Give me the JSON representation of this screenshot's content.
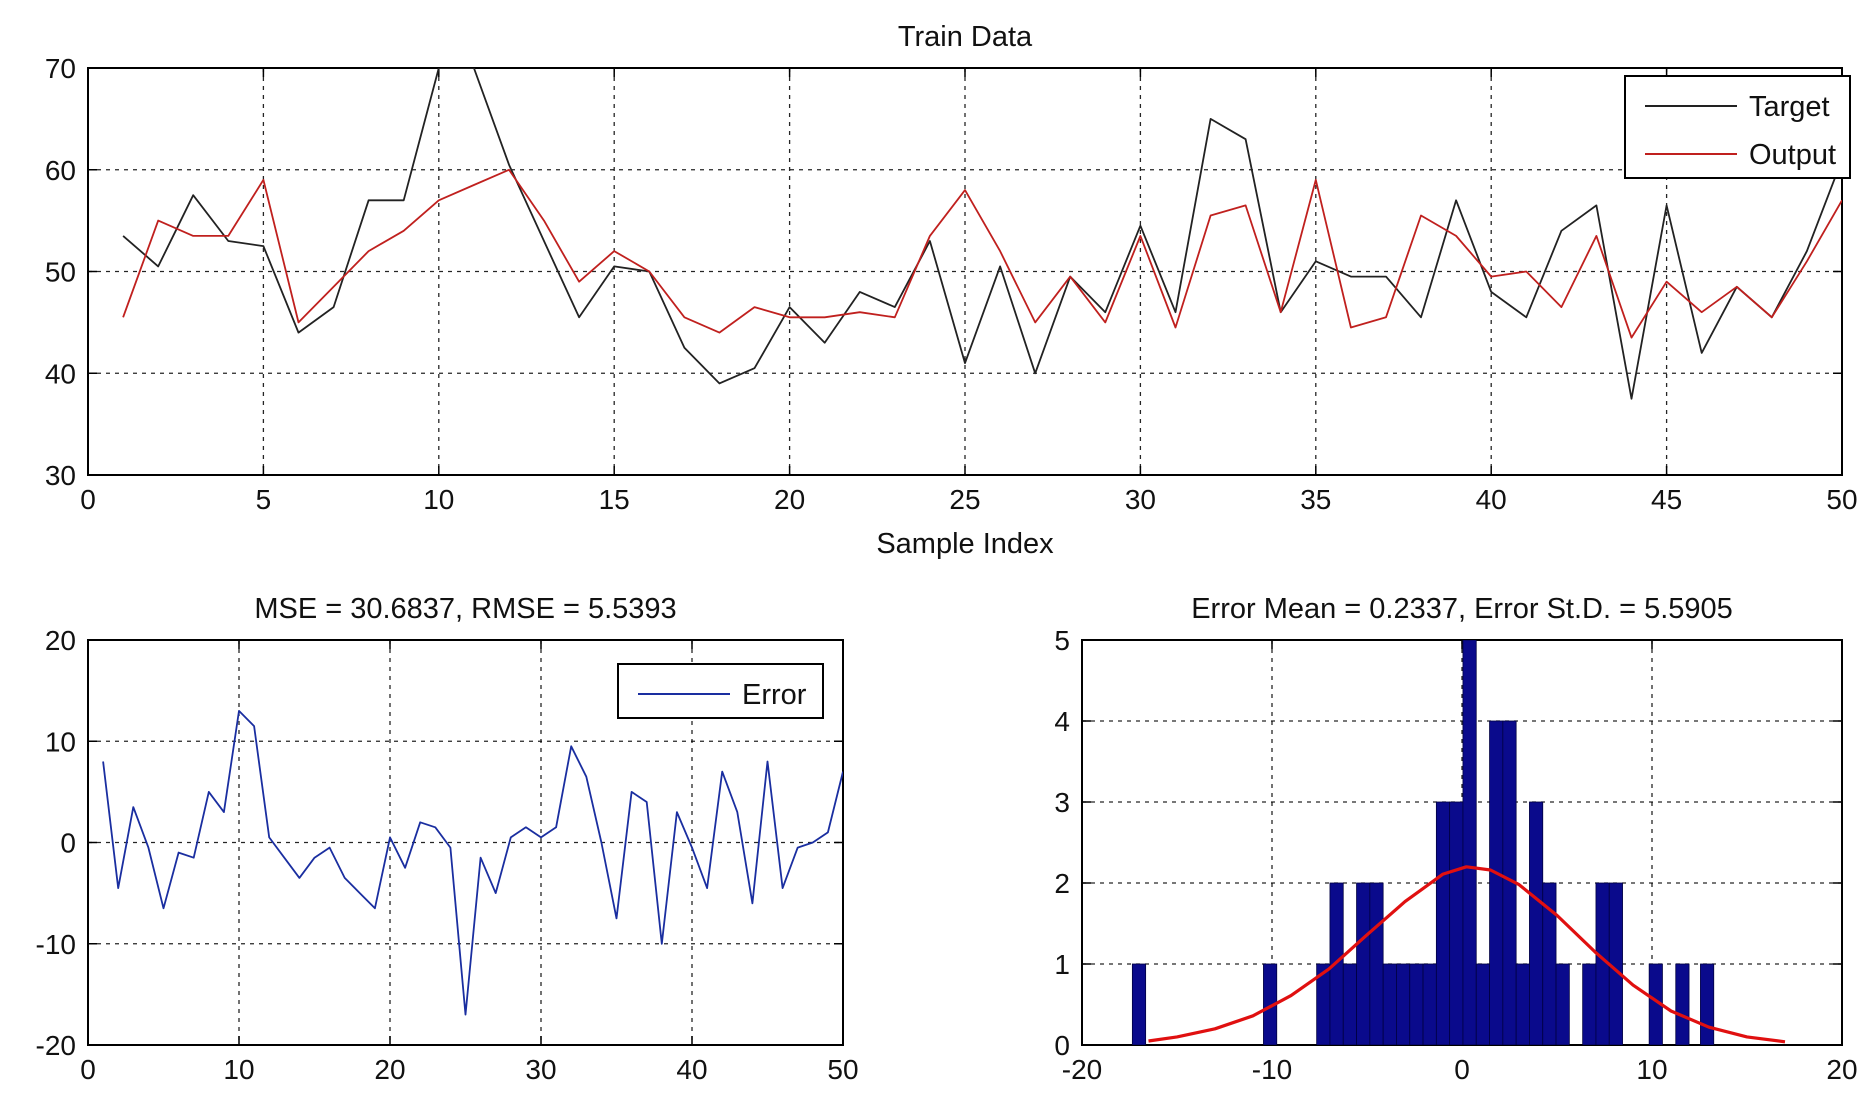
{
  "chart_data": [
    {
      "type": "line",
      "title": "Train Data",
      "xlabel": "Sample Index",
      "ylabel": "",
      "xlim": [
        0,
        50
      ],
      "ylim": [
        30,
        70
      ],
      "xticks": [
        0,
        5,
        10,
        15,
        20,
        25,
        30,
        35,
        40,
        45,
        50
      ],
      "yticks": [
        30,
        40,
        50,
        60,
        70
      ],
      "grid": true,
      "legend_position": "top-right",
      "x": [
        1,
        2,
        3,
        4,
        5,
        6,
        7,
        8,
        9,
        10,
        11,
        12,
        13,
        14,
        15,
        16,
        17,
        18,
        19,
        20,
        21,
        22,
        23,
        24,
        25,
        26,
        27,
        28,
        29,
        30,
        31,
        32,
        33,
        34,
        35,
        36,
        37,
        38,
        39,
        40,
        41,
        42,
        43,
        44,
        45,
        46,
        47,
        48,
        49,
        50
      ],
      "series": [
        {
          "name": "Target",
          "color": "#222222",
          "values": [
            53.5,
            50.5,
            57.5,
            53,
            52.5,
            44,
            46.5,
            57,
            57,
            70,
            70,
            60.5,
            53,
            45.5,
            50.5,
            50,
            42.5,
            39,
            40.5,
            46.5,
            43,
            48,
            46.5,
            53,
            41,
            50.5,
            40,
            49.5,
            46,
            54.5,
            46,
            65,
            63,
            46,
            51,
            49.5,
            49.5,
            45.5,
            57,
            48,
            45.5,
            54,
            56.5,
            37.5,
            56.5,
            42,
            48.5,
            45.5,
            52,
            61
          ]
        },
        {
          "name": "Output",
          "color": "#c0201e",
          "values": [
            45.5,
            55,
            53.5,
            53.5,
            59,
            45,
            48.5,
            52,
            54,
            57,
            58.5,
            60,
            55,
            49,
            52,
            50,
            45.5,
            44,
            46.5,
            45.5,
            45.5,
            46,
            45.5,
            53.5,
            58,
            52,
            45,
            49.5,
            45,
            53.5,
            44.5,
            55.5,
            56.5,
            46,
            59,
            44.5,
            45.5,
            55.5,
            53.5,
            49.5,
            50,
            46.5,
            53.5,
            43.5,
            49,
            46,
            48.5,
            45.5,
            51,
            57
          ]
        }
      ]
    },
    {
      "type": "line",
      "title": "MSE = 30.6837, RMSE = 5.5393",
      "xlabel": "",
      "ylabel": "",
      "xlim": [
        0,
        50
      ],
      "ylim": [
        -20,
        20
      ],
      "xticks": [
        0,
        10,
        20,
        30,
        40,
        50
      ],
      "yticks": [
        -20,
        -10,
        0,
        10,
        20
      ],
      "grid": true,
      "legend_position": "top-right",
      "x": [
        1,
        2,
        3,
        4,
        5,
        6,
        7,
        8,
        9,
        10,
        11,
        12,
        13,
        14,
        15,
        16,
        17,
        18,
        19,
        20,
        21,
        22,
        23,
        24,
        25,
        26,
        27,
        28,
        29,
        30,
        31,
        32,
        33,
        34,
        35,
        36,
        37,
        38,
        39,
        40,
        41,
        42,
        43,
        44,
        45,
        46,
        47,
        48,
        49,
        50
      ],
      "series": [
        {
          "name": "Error",
          "color": "#1a2ea0",
          "values": [
            8,
            -4.5,
            3.5,
            -0.5,
            -6.5,
            -1,
            -1.5,
            5,
            3,
            13,
            11.5,
            0.5,
            -1.5,
            -3.5,
            -1.5,
            -0.5,
            -3.5,
            -5,
            -6.5,
            0.5,
            -2.5,
            2,
            1.5,
            -0.5,
            -17,
            -1.5,
            -5,
            0.5,
            1.5,
            0.5,
            1.5,
            9.5,
            6.5,
            0,
            -7.5,
            5,
            4,
            -10,
            3,
            -0.5,
            -4.5,
            7,
            3,
            -6,
            8,
            -4.5,
            -0.5,
            0,
            1,
            7
          ]
        }
      ]
    },
    {
      "type": "bar",
      "title": "Error Mean = 0.2337, Error St.D. = 5.5905",
      "xlabel": "",
      "ylabel": "",
      "xlim": [
        -20,
        20
      ],
      "ylim": [
        0,
        5
      ],
      "xticks": [
        -20,
        -10,
        0,
        10,
        20
      ],
      "yticks": [
        0,
        1,
        2,
        3,
        4,
        5
      ],
      "grid": true,
      "bar_color": "#0a0a8c",
      "curve_color": "#e01010",
      "bin_width": 0.7,
      "bin_centers": [
        -17,
        -10.1,
        -7.3,
        -6.6,
        -5.9,
        -5.2,
        -4.5,
        -3.8,
        -3.1,
        -2.4,
        -1.7,
        -1,
        -0.3,
        0.4,
        1.1,
        1.8,
        2.5,
        3.2,
        3.9,
        4.6,
        5.3,
        6.7,
        7.4,
        8.1,
        10.2,
        11.6,
        12.9
      ],
      "counts": [
        1,
        1,
        1,
        2,
        1,
        2,
        2,
        1,
        1,
        1,
        1,
        3,
        3,
        5,
        1,
        4,
        4,
        1,
        3,
        2,
        1,
        1,
        2,
        2,
        1,
        1,
        1
      ],
      "fit_curve": {
        "x": [
          -16.5,
          -15,
          -13,
          -11,
          -9,
          -7,
          -5,
          -3,
          -1,
          0.23,
          1.5,
          3,
          5,
          7,
          9,
          11,
          13,
          15,
          17
        ],
        "y": [
          0.05,
          0.1,
          0.2,
          0.36,
          0.61,
          0.94,
          1.36,
          1.77,
          2.11,
          2.2,
          2.16,
          1.98,
          1.6,
          1.15,
          0.74,
          0.42,
          0.22,
          0.1,
          0.04
        ]
      }
    }
  ]
}
